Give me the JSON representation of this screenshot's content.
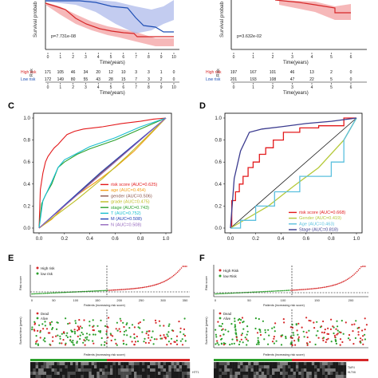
{
  "top_left_km": {
    "ylabel": "Survival probab",
    "pvalue": "p=7.731e-08",
    "xlabel": "Time(years)",
    "ticks": [
      "0",
      "1",
      "2",
      "3",
      "4",
      "5",
      "6",
      "7",
      "8",
      "9",
      "10"
    ],
    "risk_ylabel": "Risk",
    "risk_xlabel": "Time(years)",
    "risk_rows": [
      {
        "name": "High risk",
        "color": "#d62728",
        "values": [
          "171",
          "105",
          "46",
          "34",
          "20",
          "12",
          "10",
          "3",
          "3",
          "1",
          "0"
        ]
      },
      {
        "name": "Low risk",
        "color": "#1f4fb5",
        "values": [
          "172",
          "149",
          "80",
          "55",
          "43",
          "28",
          "15",
          "7",
          "3",
          "2",
          "0"
        ]
      }
    ],
    "chart_data": {
      "type": "line",
      "x": [
        0,
        1,
        2,
        3,
        4,
        5,
        6,
        7,
        8,
        9,
        10
      ],
      "xlim": [
        0,
        10
      ],
      "ylim": [
        0,
        1
      ],
      "series": [
        {
          "name": "High risk",
          "color": "#d62728",
          "values": [
            0.97,
            0.78,
            0.62,
            0.5,
            0.42,
            0.34,
            0.3,
            0.28,
            0.22,
            0.17,
            0.17
          ]
        },
        {
          "name": "Low risk",
          "color": "#1f4fb5",
          "values": [
            0.99,
            0.95,
            0.88,
            0.84,
            0.8,
            0.72,
            0.72,
            0.6,
            0.6,
            0.6,
            0.6
          ]
        }
      ]
    }
  },
  "top_right_km": {
    "ylabel": "Survival probab",
    "pvalue": "p=3.632e-02",
    "xlabel": "Time(years)",
    "ticks": [
      "0",
      "1",
      "2",
      "3",
      "4",
      "5",
      "6"
    ],
    "risk_ylabel": "Risk",
    "risk_xlabel": "Time(years)",
    "risk_rows": [
      {
        "name": "High risk",
        "color": "#d62728",
        "values": [
          "197",
          "167",
          "101",
          "46",
          "13",
          "2",
          "0"
        ]
      },
      {
        "name": "Low risk",
        "color": "#1f4fb5",
        "values": [
          "201",
          "193",
          "108",
          "47",
          "22",
          "5",
          "0"
        ]
      }
    ]
  },
  "panel_c": {
    "label": "C",
    "yticks": [
      "0.0",
      "0.2",
      "0.4",
      "0.6",
      "0.8",
      "1.0"
    ],
    "xticks": [
      "0.0",
      "0.2",
      "0.4",
      "0.6",
      "0.8",
      "1.0"
    ],
    "chart_data": {
      "type": "line",
      "xlim": [
        0,
        1
      ],
      "ylim": [
        0,
        1
      ],
      "legend_position": "bottom-right",
      "series": [
        {
          "name": "risk score (AUC=0.625)",
          "color": "#e31a1c",
          "x": [
            0,
            0.01,
            0.03,
            0.05,
            0.07,
            0.1,
            0.12,
            0.15,
            0.18,
            0.22,
            0.28,
            0.35,
            0.5,
            0.65,
            0.8,
            0.9,
            1
          ],
          "values": [
            0,
            0.35,
            0.5,
            0.6,
            0.65,
            0.7,
            0.73,
            0.76,
            0.8,
            0.85,
            0.88,
            0.9,
            0.92,
            0.95,
            0.97,
            0.99,
            1
          ]
        },
        {
          "name": "age (AUC=0.454)",
          "color": "#f39c12",
          "x": [
            0,
            0.1,
            0.2,
            0.3,
            0.45,
            0.6,
            0.75,
            0.9,
            1
          ],
          "values": [
            0,
            0.08,
            0.2,
            0.3,
            0.42,
            0.55,
            0.7,
            0.88,
            1
          ]
        },
        {
          "name": "gender (AUC=0.506)",
          "color": "#8c564b",
          "x": [
            0,
            0.5,
            1
          ],
          "values": [
            0,
            0.51,
            1
          ]
        },
        {
          "name": "grade (AUC=0.475)",
          "color": "#bcbd22",
          "x": [
            0,
            0.15,
            0.3,
            0.5,
            0.7,
            0.85,
            1
          ],
          "values": [
            0,
            0.13,
            0.26,
            0.45,
            0.66,
            0.83,
            1
          ]
        },
        {
          "name": "stage (AUC=0.743)",
          "color": "#2ca02c",
          "x": [
            0,
            0.02,
            0.05,
            0.1,
            0.15,
            0.2,
            0.3,
            0.4,
            0.5,
            0.6,
            0.7,
            0.8,
            0.9,
            1
          ],
          "values": [
            0,
            0.22,
            0.3,
            0.4,
            0.55,
            0.6,
            0.67,
            0.72,
            0.76,
            0.8,
            0.85,
            0.9,
            0.95,
            1
          ]
        },
        {
          "name": "T (AUC=0.752)",
          "color": "#17becf",
          "x": [
            0,
            0.03,
            0.06,
            0.1,
            0.15,
            0.2,
            0.3,
            0.4,
            0.5,
            0.6,
            0.7,
            0.8,
            0.9,
            1
          ],
          "values": [
            0,
            0.25,
            0.32,
            0.42,
            0.55,
            0.62,
            0.68,
            0.74,
            0.78,
            0.82,
            0.87,
            0.92,
            0.96,
            1
          ]
        },
        {
          "name": "M (AUC=0.508)",
          "color": "#1f3fb5",
          "x": [
            0,
            0.48,
            1
          ],
          "values": [
            0,
            0.5,
            1
          ]
        },
        {
          "name": "N (AUC=0.508)",
          "color": "#9467bd",
          "x": [
            0,
            0.5,
            1
          ],
          "values": [
            0,
            0.5,
            1
          ]
        }
      ]
    }
  },
  "panel_d": {
    "label": "D",
    "yticks": [
      "0.0",
      "0.2",
      "0.4",
      "0.6",
      "0.8",
      "1.0"
    ],
    "xticks": [
      "0.0",
      "0.2",
      "0.4",
      "0.6",
      "0.8",
      "1.0"
    ],
    "chart_data": {
      "type": "line",
      "xlim": [
        0,
        1
      ],
      "ylim": [
        0,
        1
      ],
      "legend_position": "bottom-right",
      "series": [
        {
          "name": "risk score (AUC=0.668)",
          "color": "#e31a1c",
          "x": [
            0,
            0.01,
            0.01,
            0.04,
            0.04,
            0.07,
            0.07,
            0.1,
            0.1,
            0.14,
            0.14,
            0.18,
            0.18,
            0.23,
            0.23,
            0.28,
            0.28,
            0.34,
            0.34,
            0.42,
            0.42,
            0.55,
            0.55,
            0.7,
            0.7,
            0.9,
            0.9,
            1
          ],
          "values": [
            0,
            0,
            0.25,
            0.25,
            0.33,
            0.33,
            0.4,
            0.4,
            0.47,
            0.47,
            0.55,
            0.55,
            0.6,
            0.6,
            0.67,
            0.67,
            0.73,
            0.73,
            0.8,
            0.8,
            0.87,
            0.87,
            0.91,
            0.91,
            0.93,
            0.93,
            1,
            1
          ]
        },
        {
          "name": "Gender (AUC=0.419)",
          "color": "#b5c93a",
          "x": [
            0,
            0.3,
            0.5,
            0.7,
            0.9,
            1
          ],
          "values": [
            0,
            0.2,
            0.38,
            0.55,
            0.8,
            1
          ]
        },
        {
          "name": "Age (AUC=0.463)",
          "color": "#5bc0de",
          "x": [
            0,
            0.08,
            0.08,
            0.2,
            0.2,
            0.35,
            0.35,
            0.55,
            0.55,
            0.8,
            0.8,
            0.9,
            0.9,
            1
          ],
          "values": [
            0,
            0,
            0.07,
            0.07,
            0.2,
            0.2,
            0.33,
            0.33,
            0.47,
            0.47,
            0.6,
            0.6,
            0.8,
            1
          ]
        },
        {
          "name": "Stage (AUC=0.818)",
          "color": "#3b3b8f",
          "x": [
            0,
            0.03,
            0.08,
            0.15,
            0.25,
            0.4,
            0.6,
            0.8,
            1
          ],
          "values": [
            0,
            0.45,
            0.7,
            0.87,
            0.9,
            0.92,
            0.95,
            0.97,
            1
          ]
        }
      ]
    }
  },
  "panel_e": {
    "label": "E",
    "legend": [
      {
        "name": "High risk",
        "color": "#d62728"
      },
      {
        "name": "low risk",
        "color": "#2ca02c"
      }
    ],
    "status_legend": [
      {
        "name": "Dead",
        "color": "#d62728"
      },
      {
        "name": "Alive",
        "color": "#2ca02c"
      }
    ],
    "risk_ylabel": "Risk score",
    "risk_xlabel": "Patients (increasing risk score)",
    "risk_ticks": [
      "0",
      "50",
      "100",
      "150",
      "200",
      "250",
      "300",
      "350"
    ],
    "time_ylabel": "Survival time (years)",
    "time_xlabel": "Patients (increasing risk score)",
    "heat_tags": [
      "HTT1"
    ]
  },
  "panel_f": {
    "label": "F",
    "legend": [
      {
        "name": "High Risk",
        "color": "#d62728"
      },
      {
        "name": "low Risk",
        "color": "#2ca02c"
      }
    ],
    "status_legend": [
      {
        "name": "Dead",
        "color": "#d62728"
      },
      {
        "name": "Alive",
        "color": "#2ca02c"
      }
    ],
    "risk_ylabel": "Risk score",
    "risk_xlabel": "Patients (increasing risk score)",
    "risk_ticks": [
      "0",
      "50",
      "100",
      "150",
      "200"
    ],
    "time_ylabel": "Survival time (years)",
    "time_xlabel": "Patients (increasing risk score)",
    "heat_tags": [
      "TAIF4",
      "HLTV6"
    ]
  }
}
